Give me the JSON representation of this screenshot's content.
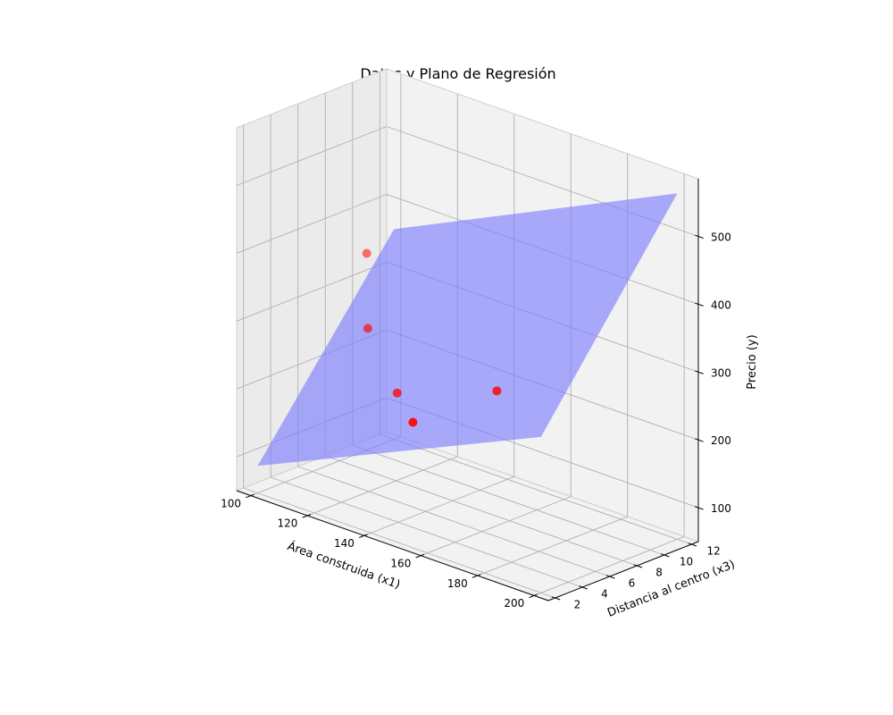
{
  "chart_data": {
    "type": "scatter",
    "title": "Datos y Plano de Regresión",
    "xlabel": "Área construida (x1)",
    "ylabel": "Distancia al centro (x3)",
    "zlabel": "Precio (y)",
    "xlim": [
      95,
      205
    ],
    "ylim": [
      1.5,
      12.5
    ],
    "zlim": [
      50,
      585
    ],
    "xticks": [
      100,
      120,
      140,
      160,
      180,
      200
    ],
    "yticks": [
      2,
      4,
      6,
      8,
      10,
      12
    ],
    "zticks": [
      100,
      200,
      300,
      400,
      500
    ],
    "grid": true,
    "colors": {
      "points": "#ff0000",
      "plane": "#8080ff",
      "pane_left": "#ebebeb",
      "pane_right": "#f2f2f2",
      "pane_floor": "#f2f2f2"
    },
    "series": [
      {
        "type": "scatter",
        "x": [
          150,
          170,
          130,
          110,
          100
        ],
        "y": [
          3,
          5,
          6,
          8,
          10
        ],
        "z": [
          220,
          280,
          210,
          260,
          340
        ]
      }
    ],
    "plane": {
      "type": "surface",
      "corners": [
        {
          "x": 100,
          "y": 2,
          "z": 90
        },
        {
          "x": 200,
          "y": 2,
          "z": 280
        },
        {
          "x": 200,
          "y": 12,
          "z": 560
        },
        {
          "x": 100,
          "y": 12,
          "z": 360
        }
      ]
    }
  }
}
